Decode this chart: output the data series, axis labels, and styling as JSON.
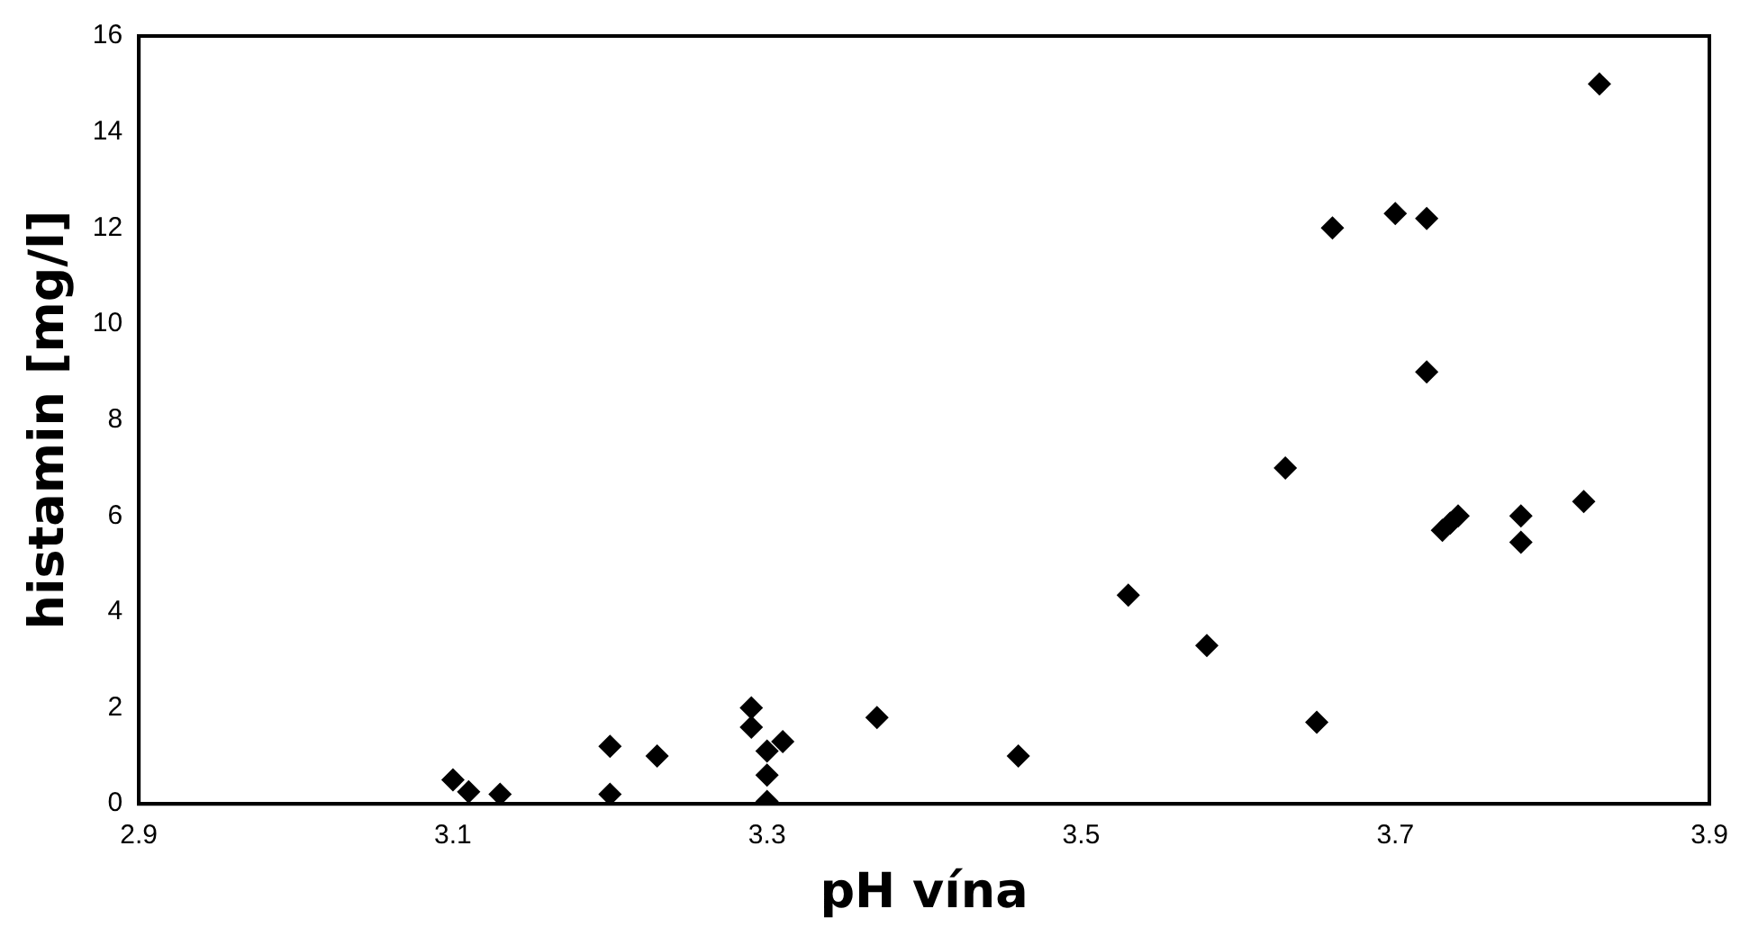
{
  "chart_data": {
    "type": "scatter",
    "xlabel": "pH vína",
    "ylabel": "histamin [mg/l]",
    "x": [
      3.1,
      3.11,
      3.13,
      3.2,
      3.2,
      3.23,
      3.29,
      3.29,
      3.3,
      3.31,
      3.3,
      3.3,
      3.37,
      3.46,
      3.53,
      3.58,
      3.63,
      3.65,
      3.66,
      3.7,
      3.72,
      3.72,
      3.73,
      3.735,
      3.74,
      3.78,
      3.78,
      3.82,
      3.83
    ],
    "series": [
      {
        "color": "#000000",
        "values": [
          0.5,
          0.25,
          0.2,
          1.2,
          0.2,
          1.0,
          2.0,
          1.6,
          1.1,
          1.3,
          0.6,
          0.05,
          1.8,
          1.0,
          4.35,
          3.3,
          7.0,
          1.7,
          12.0,
          12.3,
          12.2,
          9.0,
          5.7,
          5.85,
          6.0,
          6.0,
          5.45,
          6.3,
          15.0
        ]
      }
    ],
    "xlim": [
      2.9,
      3.9
    ],
    "xticks": [
      2.9,
      3.1,
      3.3,
      3.5,
      3.7,
      3.9
    ],
    "ylim": [
      0,
      16
    ],
    "yticks": [
      0,
      2,
      4,
      6,
      8,
      10,
      12,
      14,
      16
    ],
    "marker": "diamond",
    "grid": false,
    "legend": false
  }
}
